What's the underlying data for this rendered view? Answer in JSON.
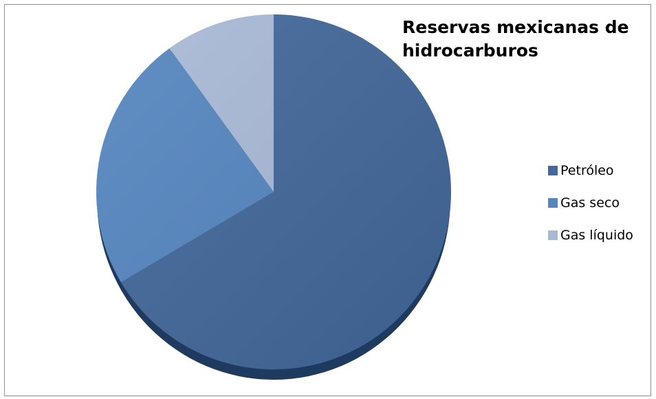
{
  "chart_data": {
    "type": "pie",
    "title": "Reservas mexicanas de hidrocarburos",
    "legend_position": "right",
    "slices": [
      {
        "label": "Petróleo",
        "value": 66.5,
        "color": "#42679a"
      },
      {
        "label": "Gas seco",
        "value": 23.5,
        "color": "#5485bf"
      },
      {
        "label": "Gas líquido",
        "value": 10.0,
        "color": "#a8b9d6"
      }
    ]
  }
}
